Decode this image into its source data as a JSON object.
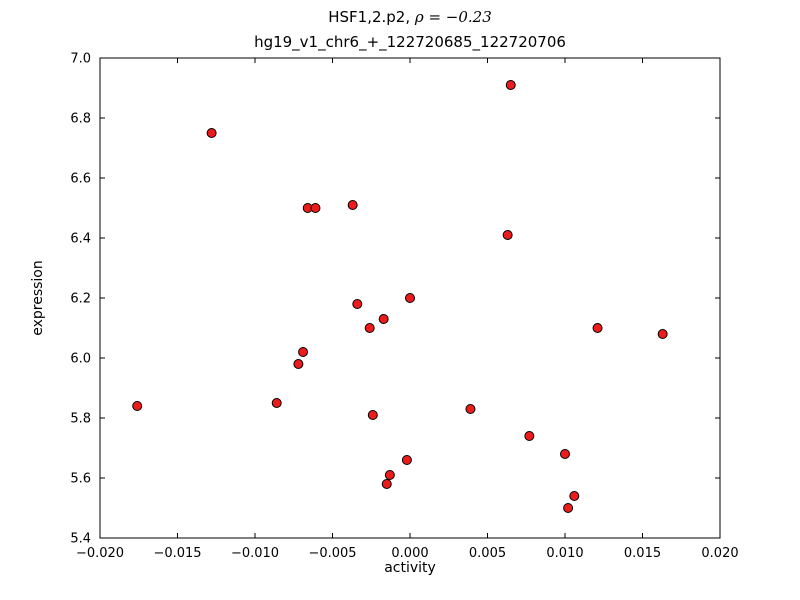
{
  "figure": {
    "title_prefix": "HSF1,2.p2, ",
    "title_math": "ρ = −0.23",
    "subtitle": "hg19_v1_chr6_+_122720685_122720706"
  },
  "chart_data": {
    "type": "scatter",
    "title": "HSF1,2.p2, ρ = −0.23",
    "subtitle": "hg19_v1_chr6_+_122720685_122720706",
    "xlabel": "activity",
    "ylabel": "expression",
    "xlim": [
      -0.02,
      0.02
    ],
    "ylim": [
      5.4,
      7.0
    ],
    "grid": false,
    "legend": false,
    "x_tick_values": [
      -0.02,
      -0.015,
      -0.01,
      -0.005,
      0.0,
      0.005,
      0.01,
      0.015,
      0.02
    ],
    "x_tick_labels": [
      "−0.020",
      "−0.015",
      "−0.010",
      "−0.005",
      "0.000",
      "0.005",
      "0.010",
      "0.015",
      "0.020"
    ],
    "y_tick_values": [
      5.4,
      5.6,
      5.8,
      6.0,
      6.2,
      6.4,
      6.6,
      6.8,
      7.0
    ],
    "y_tick_labels": [
      "5.4",
      "5.6",
      "5.8",
      "6.0",
      "6.2",
      "6.4",
      "6.6",
      "6.8",
      "7.0"
    ],
    "marker": {
      "shape": "circle",
      "fill": "#ed1c1c",
      "edge": "#000000",
      "radius_px": 4.5
    },
    "points": [
      {
        "x": -0.0176,
        "y": 5.84
      },
      {
        "x": -0.0128,
        "y": 6.75
      },
      {
        "x": -0.0086,
        "y": 5.85
      },
      {
        "x": -0.0072,
        "y": 5.98
      },
      {
        "x": -0.0069,
        "y": 6.02
      },
      {
        "x": -0.0066,
        "y": 6.5
      },
      {
        "x": -0.0061,
        "y": 6.5
      },
      {
        "x": -0.0037,
        "y": 6.51
      },
      {
        "x": -0.0034,
        "y": 6.18
      },
      {
        "x": -0.0026,
        "y": 6.1
      },
      {
        "x": -0.0024,
        "y": 5.81
      },
      {
        "x": -0.0017,
        "y": 6.13
      },
      {
        "x": -0.0015,
        "y": 5.58
      },
      {
        "x": -0.0013,
        "y": 5.61
      },
      {
        "x": -0.0002,
        "y": 5.66
      },
      {
        "x": 0.0,
        "y": 6.2
      },
      {
        "x": 0.0039,
        "y": 5.83
      },
      {
        "x": 0.0063,
        "y": 6.41
      },
      {
        "x": 0.0065,
        "y": 6.91
      },
      {
        "x": 0.0077,
        "y": 5.74
      },
      {
        "x": 0.01,
        "y": 5.68
      },
      {
        "x": 0.0102,
        "y": 5.5
      },
      {
        "x": 0.0106,
        "y": 5.54
      },
      {
        "x": 0.0121,
        "y": 6.1
      },
      {
        "x": 0.0163,
        "y": 6.08
      }
    ]
  }
}
